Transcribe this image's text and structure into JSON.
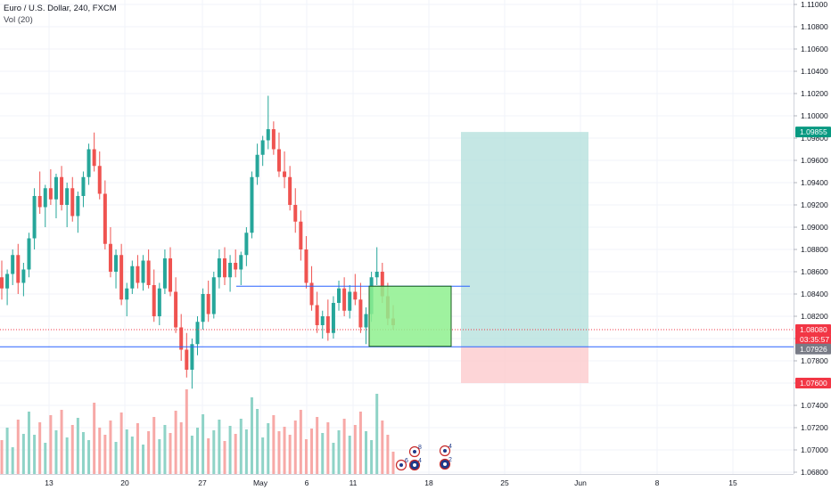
{
  "legend": {
    "symbol_line": "Euro / U.S. Dollar, 240, FXCM",
    "volume_line": "Vol (20)"
  },
  "price_axis": {
    "ticks": [
      "1.11000",
      "1.10800",
      "1.10600",
      "1.10400",
      "1.10200",
      "1.10000",
      "1.09800",
      "1.09600",
      "1.09400",
      "1.09200",
      "1.09000",
      "1.08800",
      "1.08600",
      "1.08400",
      "1.08200",
      "1.08000",
      "1.07800",
      "1.07600",
      "1.07400",
      "1.07200",
      "1.07000",
      "1.06800"
    ],
    "tags": [
      {
        "name": "target-price-tag",
        "label": "1.09855",
        "color": "#089981"
      },
      {
        "name": "current-price-tag",
        "label": "1.08080",
        "color": "#f23645"
      },
      {
        "name": "countdown-tag",
        "label": "03:35:57",
        "color": "#f23645"
      },
      {
        "name": "entry-price-tag",
        "label": "1.07926",
        "color": "#787b86"
      },
      {
        "name": "stop-price-tag",
        "label": "1.07600",
        "color": "#f23645"
      }
    ]
  },
  "time_axis": {
    "ticks": [
      "13",
      "20",
      "27",
      "May",
      "6",
      "11",
      "18",
      "25",
      "Jun",
      "8",
      "15"
    ]
  },
  "events": [
    {
      "name": "event-flag-1",
      "count": "6"
    },
    {
      "name": "event-flag-2",
      "count": "4"
    },
    {
      "name": "event-flag-3",
      "count": "8"
    },
    {
      "name": "event-flag-4",
      "count": "2"
    },
    {
      "name": "event-flag-5",
      "count": "4"
    }
  ],
  "colors": {
    "up": "#26a69a",
    "down": "#ef5350",
    "vol_up": "#8fd3c7",
    "vol_down": "#f7a9a7",
    "grid": "#f0f3fa",
    "hline": "#2962ff",
    "target_zone": "#b2dfdb",
    "stop_zone": "#fccbcd",
    "green_box": "#8ef08e"
  },
  "chart_data": {
    "type": "candlestick",
    "symbol": "Euro / U.S. Dollar",
    "interval": "240",
    "source": "FXCM",
    "price_range": [
      1.0665,
      1.1115
    ],
    "ohlc": [
      [
        1.0855,
        1.087,
        1.0835,
        1.0845
      ],
      [
        1.0845,
        1.0862,
        1.083,
        1.0858
      ],
      [
        1.0858,
        1.088,
        1.0848,
        1.0875
      ],
      [
        1.0875,
        1.0885,
        1.084,
        1.085
      ],
      [
        1.085,
        1.0868,
        1.0838,
        1.0862
      ],
      [
        1.0862,
        1.0895,
        1.0855,
        1.089
      ],
      [
        1.089,
        1.0935,
        1.088,
        1.0928
      ],
      [
        1.0928,
        1.095,
        1.0912,
        1.0918
      ],
      [
        1.0918,
        1.0938,
        1.09,
        1.0935
      ],
      [
        1.0935,
        1.0952,
        1.092,
        1.0925
      ],
      [
        1.0925,
        1.0948,
        1.0908,
        1.0945
      ],
      [
        1.0945,
        1.0955,
        1.0915,
        1.092
      ],
      [
        1.092,
        1.094,
        1.09,
        1.0935
      ],
      [
        1.0935,
        1.0945,
        1.0905,
        1.091
      ],
      [
        1.091,
        1.0932,
        1.0895,
        1.0928
      ],
      [
        1.0928,
        1.095,
        1.0918,
        1.0945
      ],
      [
        1.0945,
        1.0975,
        1.0938,
        1.097
      ],
      [
        1.097,
        1.0985,
        1.095,
        1.0955
      ],
      [
        1.0955,
        1.0968,
        1.0925,
        1.093
      ],
      [
        1.093,
        1.0942,
        1.088,
        1.0885
      ],
      [
        1.0885,
        1.09,
        1.0855,
        1.086
      ],
      [
        1.086,
        1.088,
        1.0845,
        1.0875
      ],
      [
        1.0875,
        1.0885,
        1.083,
        1.0835
      ],
      [
        1.0835,
        1.085,
        1.082,
        1.0845
      ],
      [
        1.0845,
        1.087,
        1.084,
        1.0865
      ],
      [
        1.0865,
        1.0875,
        1.0845,
        1.085
      ],
      [
        1.085,
        1.0875,
        1.0843,
        1.087
      ],
      [
        1.087,
        1.088,
        1.0845,
        1.0848
      ],
      [
        1.0848,
        1.0862,
        1.0815,
        1.082
      ],
      [
        1.082,
        1.085,
        1.0812,
        1.0845
      ],
      [
        1.0845,
        1.088,
        1.084,
        1.0872
      ],
      [
        1.0872,
        1.0882,
        1.0838,
        1.0842
      ],
      [
        1.0842,
        1.0855,
        1.0805,
        1.081
      ],
      [
        1.081,
        1.0822,
        1.078,
        1.079
      ],
      [
        1.079,
        1.0805,
        1.0765,
        1.0772
      ],
      [
        1.0772,
        1.08,
        1.0755,
        1.0795
      ],
      [
        1.0795,
        1.082,
        1.0785,
        1.0815
      ],
      [
        1.0815,
        1.0845,
        1.0808,
        1.084
      ],
      [
        1.084,
        1.0852,
        1.0815,
        1.0822
      ],
      [
        1.0822,
        1.086,
        1.0818,
        1.0855
      ],
      [
        1.0855,
        1.088,
        1.0845,
        1.0872
      ],
      [
        1.0872,
        1.0882,
        1.0848,
        1.0855
      ],
      [
        1.0855,
        1.0875,
        1.0842,
        1.0868
      ],
      [
        1.0868,
        1.088,
        1.0855,
        1.0862
      ],
      [
        1.0862,
        1.0878,
        1.0848,
        1.0875
      ],
      [
        1.0875,
        1.09,
        1.0865,
        1.0895
      ],
      [
        1.0895,
        1.095,
        1.089,
        1.0945
      ],
      [
        1.0945,
        1.0975,
        1.0938,
        1.0965
      ],
      [
        1.0965,
        1.0982,
        1.0955,
        1.0978
      ],
      [
        1.0978,
        1.1018,
        1.097,
        1.0988
      ],
      [
        1.0988,
        1.0995,
        1.0965,
        1.097
      ],
      [
        1.097,
        1.0985,
        1.0945,
        1.095
      ],
      [
        1.095,
        1.0968,
        1.0935,
        1.0945
      ],
      [
        1.0945,
        1.0955,
        1.0915,
        1.092
      ],
      [
        1.092,
        1.0935,
        1.0895,
        1.0905
      ],
      [
        1.0905,
        1.0915,
        1.087,
        1.088
      ],
      [
        1.088,
        1.0892,
        1.0845,
        1.085
      ],
      [
        1.085,
        1.0865,
        1.0825,
        1.083
      ],
      [
        1.083,
        1.0842,
        1.0805,
        1.0812
      ],
      [
        1.0812,
        1.0825,
        1.08,
        1.082
      ],
      [
        1.082,
        1.0835,
        1.0798,
        1.0805
      ],
      [
        1.0805,
        1.0838,
        1.08,
        1.0832
      ],
      [
        1.0832,
        1.0852,
        1.0825,
        1.0845
      ],
      [
        1.0845,
        1.0855,
        1.082,
        1.0825
      ],
      [
        1.0825,
        1.0848,
        1.0818,
        1.0842
      ],
      [
        1.0842,
        1.0858,
        1.083,
        1.0835
      ],
      [
        1.0835,
        1.085,
        1.0805,
        1.081
      ],
      [
        1.081,
        1.0828,
        1.0795,
        1.0822
      ],
      [
        1.0822,
        1.086,
        1.0815,
        1.0855
      ],
      [
        1.0855,
        1.0882,
        1.0848,
        1.086
      ],
      [
        1.086,
        1.0868,
        1.0832,
        1.0838
      ],
      [
        1.0838,
        1.085,
        1.0812,
        1.0818
      ],
      [
        1.0818,
        1.083,
        1.0808,
        1.0812
      ]
    ],
    "horizontal_levels": [
      1.0847,
      1.07926
    ],
    "long_position": {
      "entry": 1.07926,
      "target": 1.09855,
      "stop": 1.076
    },
    "rectangle": {
      "top": 1.0847,
      "bottom": 1.0793
    },
    "current_price": 1.0808
  }
}
